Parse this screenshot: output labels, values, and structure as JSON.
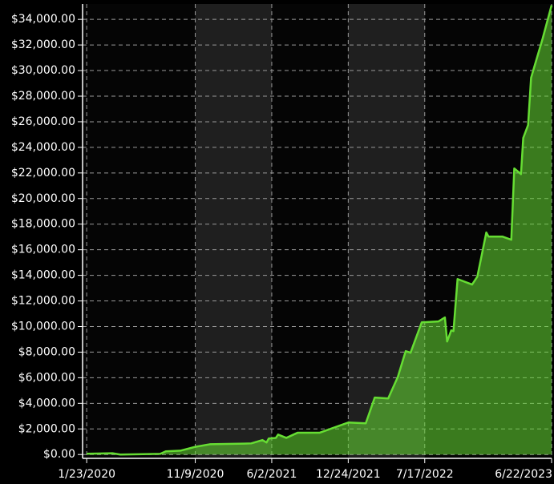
{
  "chart_data": {
    "type": "area",
    "x": [
      "1/23/2020",
      "4/1/2020",
      "4/22/2020",
      "8/7/2020",
      "8/22/2020",
      "9/30/2020",
      "11/9/2020",
      "12/18/2020",
      "3/20/2021",
      "4/8/2021",
      "5/8/2021",
      "5/19/2021",
      "5/25/2021",
      "6/13/2021",
      "6/19/2021",
      "7/11/2021",
      "8/10/2021",
      "10/8/2021",
      "12/24/2021",
      "2/9/2022",
      "3/5/2022",
      "4/10/2022",
      "5/6/2022",
      "5/27/2022",
      "6/9/2022",
      "7/9/2022",
      "8/23/2022",
      "9/9/2022",
      "9/15/2022",
      "9/26/2022",
      "10/2/2022",
      "10/13/2022",
      "11/21/2022",
      "12/5/2022",
      "12/29/2022",
      "1/4/2023",
      "2/10/2023",
      "3/6/2023",
      "3/14/2023",
      "4/1/2023",
      "4/7/2023",
      "4/20/2023",
      "4/28/2023",
      "5/29/2023",
      "6/22/2023"
    ],
    "series": [
      {
        "color": "#66dd33",
        "values": [
          60,
          100,
          0,
          50,
          250,
          300,
          600,
          800,
          850,
          870,
          1130,
          940,
          1250,
          1300,
          1560,
          1300,
          1700,
          1700,
          2500,
          2440,
          4450,
          4380,
          6070,
          8080,
          7950,
          10330,
          10400,
          10710,
          8830,
          9700,
          9640,
          13710,
          13280,
          13900,
          17350,
          17030,
          17030,
          16780,
          22350,
          21910,
          24730,
          25740,
          29430,
          32500,
          35100
        ]
      }
    ],
    "xlim": [
      "1/12/2020",
      "6/22/2023"
    ],
    "xticks": [
      "1/23/2020",
      "11/9/2020",
      "6/2/2021",
      "12/24/2021",
      "7/17/2022",
      "6/22/2023"
    ],
    "ylim": [
      -300,
      35200
    ],
    "yticks": [
      {
        "value": 0,
        "label": "$0.00"
      },
      {
        "value": 2000,
        "label": "$2,000.00"
      },
      {
        "value": 4000,
        "label": "$4,000.00"
      },
      {
        "value": 6000,
        "label": "$6,000.00"
      },
      {
        "value": 8000,
        "label": "$8,000.00"
      },
      {
        "value": 10000,
        "label": "$10,000.00"
      },
      {
        "value": 12000,
        "label": "$12,000.00"
      },
      {
        "value": 14000,
        "label": "$14,000.00"
      },
      {
        "value": 16000,
        "label": "$16,000.00"
      },
      {
        "value": 18000,
        "label": "$18,000.00"
      },
      {
        "value": 20000,
        "label": "$20,000.00"
      },
      {
        "value": 22000,
        "label": "$22,000.00"
      },
      {
        "value": 24000,
        "label": "$24,000.00"
      },
      {
        "value": 26000,
        "label": "$26,000.00"
      },
      {
        "value": 28000,
        "label": "$28,000.00"
      },
      {
        "value": 30000,
        "label": "$30,000.00"
      },
      {
        "value": 32000,
        "label": "$32,000.00"
      },
      {
        "value": 34000,
        "label": "$34,000.00"
      }
    ],
    "grid": true
  }
}
